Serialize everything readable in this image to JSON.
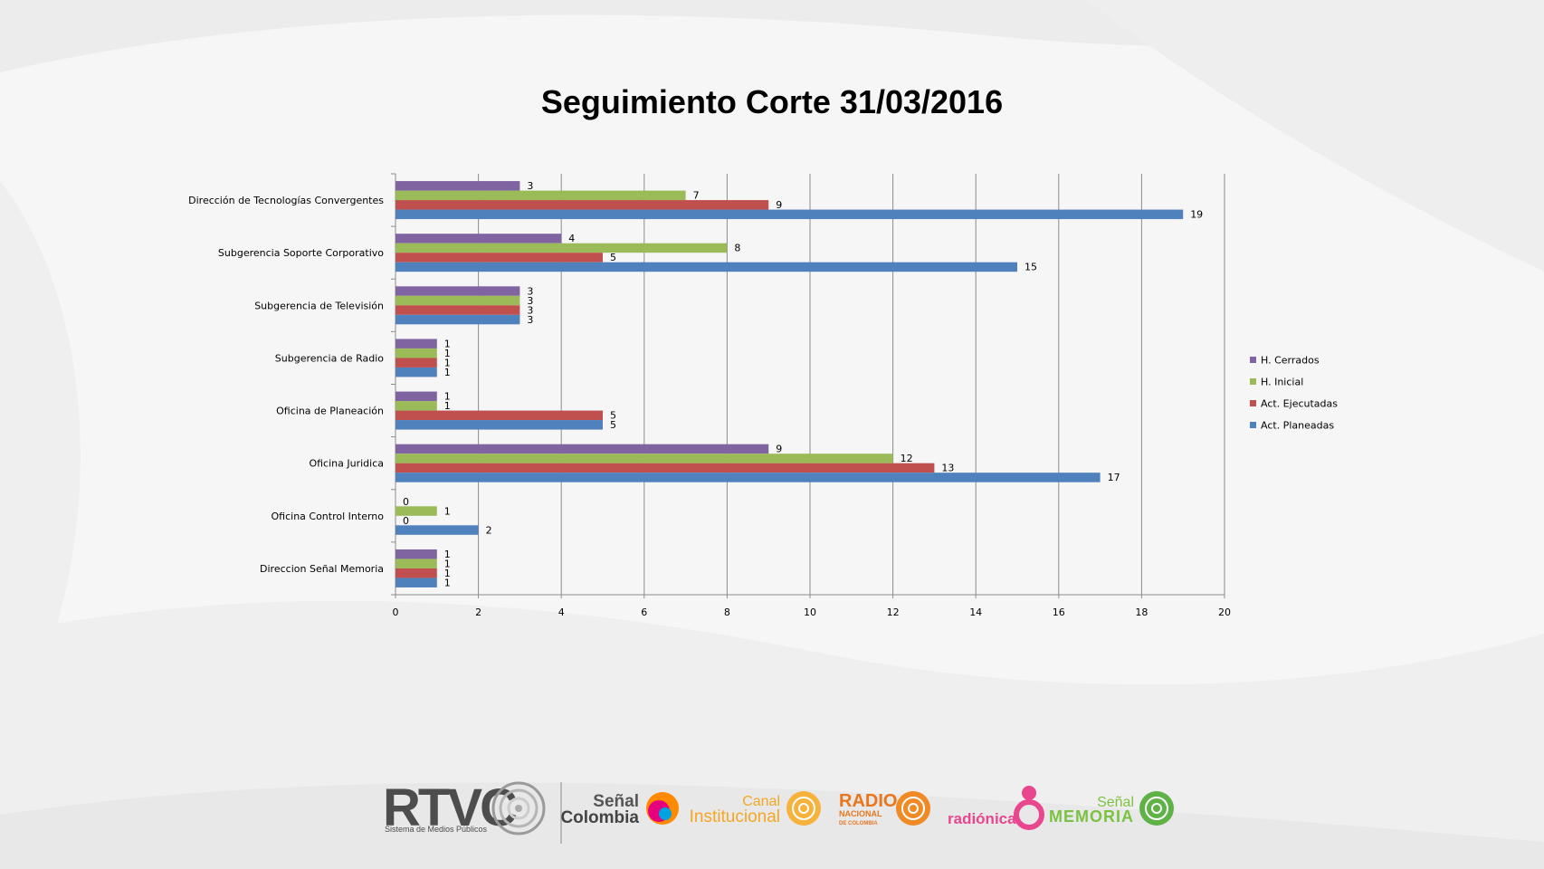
{
  "chart_data": {
    "type": "bar",
    "orientation": "horizontal",
    "title": "Seguimiento Corte 31/03/2016",
    "categories": [
      "Dirección de Tecnologías Convergentes",
      "Subgerencia Soporte Corporativo",
      "Subgerencia de Televisión",
      "Subgerencia de Radio",
      "Oficina de Planeación",
      "Oficina Juridica",
      "Oficina Control Interno",
      "Direccion Señal Memoria"
    ],
    "series": [
      {
        "name": "H. Cerrados",
        "color": "#8064a2",
        "values": [
          3,
          4,
          3,
          1,
          1,
          9,
          0,
          1
        ]
      },
      {
        "name": "H. Inicial",
        "color": "#9bbb59",
        "values": [
          7,
          8,
          3,
          1,
          1,
          12,
          1,
          1
        ]
      },
      {
        "name": "Act. Ejecutadas",
        "color": "#c0504d",
        "values": [
          9,
          5,
          3,
          1,
          5,
          13,
          0,
          1
        ]
      },
      {
        "name": "Act. Planeadas",
        "color": "#4f81bd",
        "values": [
          19,
          15,
          3,
          1,
          5,
          17,
          2,
          1
        ]
      }
    ],
    "xticks": [
      0,
      2,
      4,
      6,
      8,
      10,
      12,
      14,
      16,
      18,
      20
    ],
    "xlim": [
      0,
      20
    ],
    "grid": "vertical",
    "legend_position": "right"
  },
  "logos": {
    "rtvc": {
      "name": "RTVC",
      "tagline": "Sistema de Medios Públicos"
    },
    "senal_colombia": {
      "line1": "Señal",
      "line2": "Colombia"
    },
    "canal_institucional": {
      "line1": "Canal",
      "line2": "Institucional"
    },
    "radio_nacional": {
      "line1": "RADIO",
      "line2": "NACIONAL",
      "line3": "DE COLOMBIA"
    },
    "radionica": {
      "name": "radiónica"
    },
    "senal_memoria": {
      "line1": "Señal",
      "line2": "MEMORIA"
    }
  }
}
